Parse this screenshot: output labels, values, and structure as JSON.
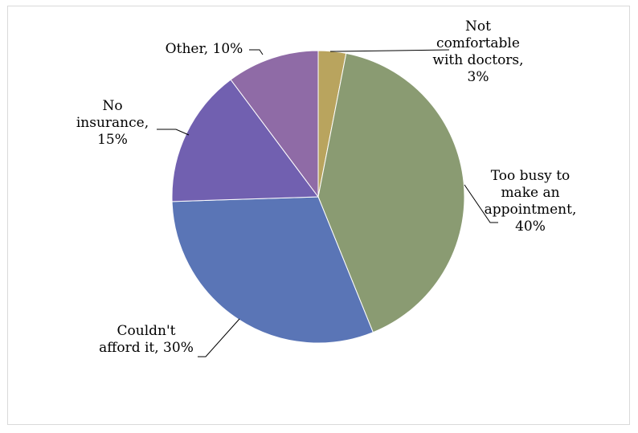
{
  "chart_data": {
    "type": "pie",
    "title": "",
    "categories": [
      "Not comfortable with doctors",
      "Too busy to make an appointment",
      "Couldn't afford it",
      "No insurance",
      "Other"
    ],
    "values": [
      3,
      40,
      30,
      15,
      10
    ],
    "unit": "%",
    "data_labels": [
      [
        "Not",
        "comfortable",
        "with doctors,",
        "3%"
      ],
      [
        "Too busy to",
        "make an",
        "appointment,",
        "40%"
      ],
      [
        "Couldn't",
        "afford it, 30%"
      ],
      [
        "No",
        "insurance,",
        "15%"
      ],
      [
        "Other, 10%"
      ]
    ],
    "colors": [
      "#b9a45e",
      "#8a9b72",
      "#5a75b6",
      "#7160b0",
      "#8f6ba6"
    ],
    "legend": "none",
    "start_angle_deg": 0,
    "direction": "clockwise"
  }
}
